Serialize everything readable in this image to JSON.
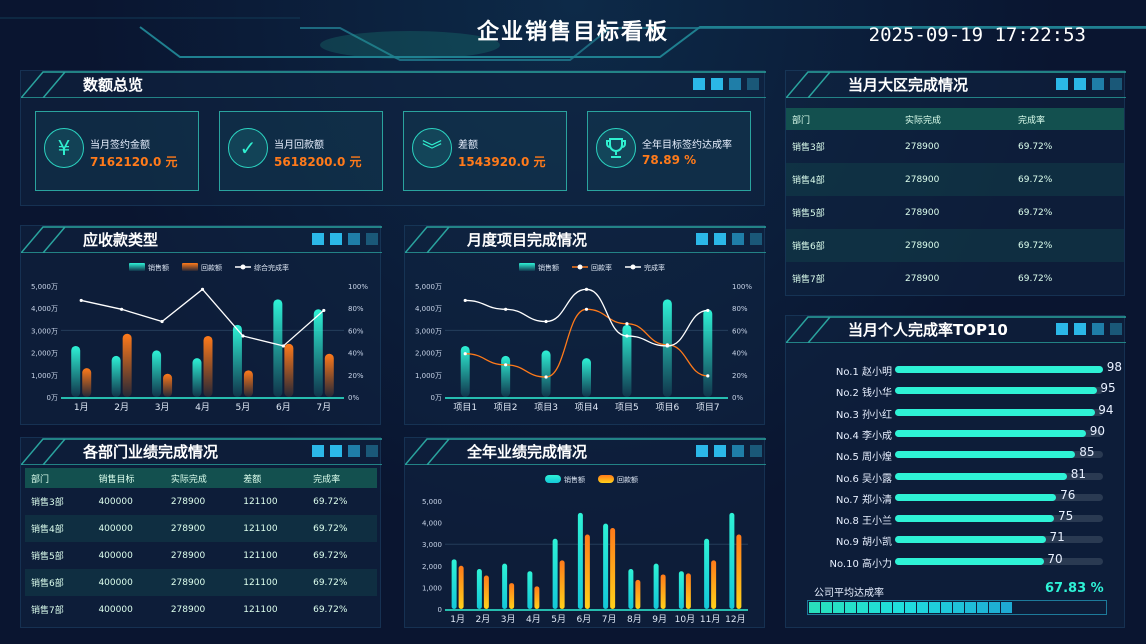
{
  "header": {
    "title": "企业销售目标看板",
    "datetime": "2025-09-19 17:22:53"
  },
  "overview": {
    "title": "数额总览",
    "cards": [
      {
        "icon": "yuan-icon",
        "label": "当月签约金额",
        "value": "7162120.0 元"
      },
      {
        "icon": "check-icon",
        "label": "当月回款额",
        "value": "5618200.0 元"
      },
      {
        "icon": "double-chevron-down-icon",
        "label": "差额",
        "value": "1543920.0 元"
      },
      {
        "icon": "trophy-icon",
        "label": "全年目标签约达成率",
        "value": "78.89 %"
      }
    ]
  },
  "colors": {
    "teal": "#2ef2d6",
    "orange": "#ff7a1a",
    "yellow": "#ffd21a",
    "accent": "#1fb6e8"
  },
  "chart_data": [
    {
      "type": "bar",
      "title": "应收款类型",
      "categories": [
        "1月",
        "2月",
        "3月",
        "4月",
        "5月",
        "6月",
        "7月"
      ],
      "series": [
        {
          "name": "销售额",
          "type": "bar",
          "values": [
            2300,
            1850,
            2100,
            1750,
            3250,
            4400,
            3950
          ]
        },
        {
          "name": "回款额",
          "type": "bar",
          "values": [
            1300,
            2850,
            1050,
            2750,
            1200,
            2400,
            1950
          ]
        },
        {
          "name": "综合完成率",
          "type": "line",
          "axis": "right",
          "values": [
            87,
            79,
            68,
            97,
            55,
            46,
            78
          ]
        }
      ],
      "yticks": [
        "0万",
        "1,000万",
        "2,000万",
        "3,000万",
        "4,000万",
        "5,000万"
      ],
      "ylim": [
        0,
        5000
      ],
      "y2ticks": [
        "0%",
        "20%",
        "40%",
        "60%",
        "80%",
        "100%"
      ],
      "y2lim": [
        0,
        100
      ]
    },
    {
      "type": "bar",
      "title": "月度项目完成情况",
      "categories": [
        "项目1",
        "项目2",
        "项目3",
        "项目4",
        "项目5",
        "项目6",
        "项目7"
      ],
      "series": [
        {
          "name": "销售额",
          "type": "bar",
          "values": [
            2300,
            1850,
            2100,
            1750,
            3250,
            4400,
            3950
          ]
        },
        {
          "name": "回款率",
          "type": "line",
          "axis": "right",
          "smooth": true,
          "values": [
            39,
            29,
            18,
            79,
            66,
            47,
            19
          ]
        },
        {
          "name": "完成率",
          "type": "line",
          "axis": "right",
          "smooth": true,
          "values": [
            87,
            79,
            68,
            97,
            55,
            46,
            78
          ]
        }
      ],
      "yticks": [
        "0万",
        "1,000万",
        "2,000万",
        "3,000万",
        "4,000万",
        "5,000万"
      ],
      "ylim": [
        0,
        5000
      ],
      "y2ticks": [
        "0%",
        "20%",
        "40%",
        "60%",
        "80%",
        "100%"
      ],
      "y2lim": [
        0,
        100
      ]
    },
    {
      "type": "bar",
      "title": "全年业绩完成情况",
      "categories": [
        "1月",
        "2月",
        "3月",
        "4月",
        "5月",
        "6月",
        "7月",
        "8月",
        "9月",
        "10月",
        "11月",
        "12月"
      ],
      "series": [
        {
          "name": "销售额",
          "type": "bar",
          "values": [
            2300,
            1850,
            2100,
            1750,
            3250,
            4450,
            3950,
            1850,
            2100,
            1750,
            3250,
            4450
          ]
        },
        {
          "name": "回款额",
          "type": "bar",
          "values": [
            2000,
            1550,
            1200,
            1050,
            2250,
            3450,
            3750,
            1350,
            1600,
            1650,
            2250,
            3450
          ]
        }
      ],
      "yticks": [
        "0",
        "1,000",
        "2,000",
        "3,000",
        "4,000",
        "5,000"
      ],
      "ylim": [
        0,
        5000
      ]
    }
  ],
  "region": {
    "title": "当月大区完成情况",
    "headers": [
      "部门",
      "实际完成",
      "完成率"
    ],
    "rows": [
      [
        "销售3部",
        "278900",
        "69.72%"
      ],
      [
        "销售4部",
        "278900",
        "69.72%"
      ],
      [
        "销售5部",
        "278900",
        "69.72%"
      ],
      [
        "销售6部",
        "278900",
        "69.72%"
      ],
      [
        "销售7部",
        "278900",
        "69.72%"
      ]
    ]
  },
  "dept": {
    "title": "各部门业绩完成情况",
    "headers": [
      "部门",
      "销售目标",
      "实际完成",
      "差额",
      "完成率"
    ],
    "rows": [
      [
        "销售3部",
        "400000",
        "278900",
        "121100",
        "69.72%"
      ],
      [
        "销售4部",
        "400000",
        "278900",
        "121100",
        "69.72%"
      ],
      [
        "销售5部",
        "400000",
        "278900",
        "121100",
        "69.72%"
      ],
      [
        "销售6部",
        "400000",
        "278900",
        "121100",
        "69.72%"
      ],
      [
        "销售7部",
        "400000",
        "278900",
        "121100",
        "69.72%"
      ]
    ]
  },
  "top10": {
    "title": "当月个人完成率TOP10",
    "items": [
      {
        "rank": "No.1",
        "name": "赵小明",
        "value": 98
      },
      {
        "rank": "No.2",
        "name": "钱小华",
        "value": 95
      },
      {
        "rank": "No.3",
        "name": "孙小红",
        "value": 94
      },
      {
        "rank": "No.4",
        "name": "李小成",
        "value": 90
      },
      {
        "rank": "No.5",
        "name": "周小煌",
        "value": 85
      },
      {
        "rank": "No.6",
        "name": "吴小露",
        "value": 81
      },
      {
        "rank": "No.7",
        "name": "郑小清",
        "value": 76
      },
      {
        "rank": "No.8",
        "name": "王小兰",
        "value": 75
      },
      {
        "rank": "No.9",
        "name": "胡小凯",
        "value": 71
      },
      {
        "rank": "No.10",
        "name": "高小力",
        "value": 70
      }
    ],
    "avg_label": "公司平均达成率",
    "avg_value": "67.83 %",
    "avg_fraction": 0.6783
  }
}
